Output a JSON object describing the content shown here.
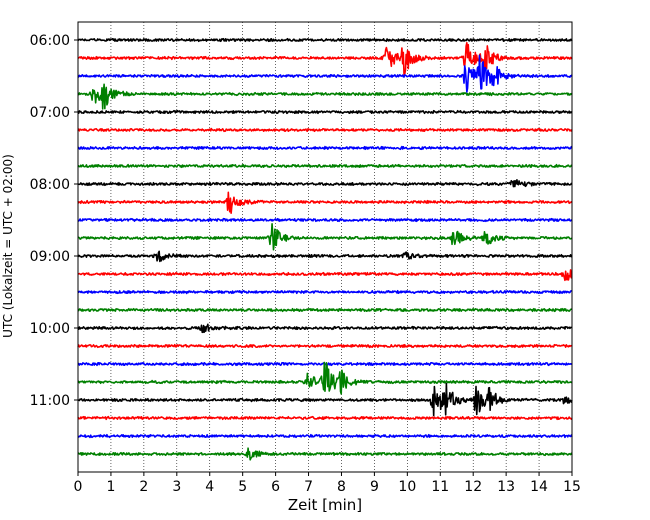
{
  "chart_data": {
    "type": "line",
    "title": "",
    "xlabel": "Zeit  [min]",
    "ylabel": "UTC (Lokalzeit = UTC + 02:00)",
    "xlim": [
      0,
      15
    ],
    "x_ticks": [
      "0",
      "1",
      "2",
      "3",
      "4",
      "5",
      "6",
      "7",
      "8",
      "9",
      "10",
      "11",
      "12",
      "13",
      "14",
      "15"
    ],
    "y_tick_labels": [
      "06:00",
      "07:00",
      "08:00",
      "09:00",
      "10:00",
      "11:00"
    ],
    "grid": "vertical dotted at each minute",
    "trace_interval_minutes": 15,
    "colors": [
      "#000000",
      "#ff0000",
      "#0000ff",
      "#008000"
    ],
    "traces": [
      {
        "start": "06:00",
        "color": "#000000",
        "events": []
      },
      {
        "start": "06:15",
        "color": "#ff0000",
        "events": [
          {
            "t": 9.4,
            "amp": 0.8
          },
          {
            "t": 9.9,
            "amp": 1.0
          },
          {
            "t": 11.8,
            "amp": 1.1
          },
          {
            "t": 12.4,
            "amp": 0.7
          }
        ]
      },
      {
        "start": "06:30",
        "color": "#0000ff",
        "events": [
          {
            "t": 11.8,
            "amp": 1.0
          },
          {
            "t": 12.2,
            "amp": 1.2
          },
          {
            "t": 12.6,
            "amp": 0.7
          }
        ]
      },
      {
        "start": "06:45",
        "color": "#008000",
        "events": [
          {
            "t": 0.5,
            "amp": 0.7
          },
          {
            "t": 0.8,
            "amp": 1.0
          }
        ]
      },
      {
        "start": "07:00",
        "color": "#000000",
        "events": []
      },
      {
        "start": "07:15",
        "color": "#ff0000",
        "events": []
      },
      {
        "start": "07:30",
        "color": "#0000ff",
        "events": []
      },
      {
        "start": "07:45",
        "color": "#008000",
        "events": []
      },
      {
        "start": "08:00",
        "color": "#000000",
        "events": [
          {
            "t": 13.2,
            "amp": 0.4
          }
        ]
      },
      {
        "start": "08:15",
        "color": "#ff0000",
        "events": [
          {
            "t": 4.6,
            "amp": 0.9
          }
        ]
      },
      {
        "start": "08:30",
        "color": "#0000ff",
        "events": []
      },
      {
        "start": "08:45",
        "color": "#008000",
        "events": [
          {
            "t": 5.9,
            "amp": 0.9
          },
          {
            "t": 11.4,
            "amp": 0.6
          },
          {
            "t": 12.4,
            "amp": 0.6
          }
        ]
      },
      {
        "start": "09:00",
        "color": "#000000",
        "events": [
          {
            "t": 2.4,
            "amp": 0.5
          },
          {
            "t": 9.9,
            "amp": 0.3
          }
        ]
      },
      {
        "start": "09:15",
        "color": "#ff0000",
        "events": [
          {
            "t": 14.8,
            "amp": 0.5
          }
        ]
      },
      {
        "start": "09:30",
        "color": "#0000ff",
        "events": []
      },
      {
        "start": "09:45",
        "color": "#008000",
        "events": []
      },
      {
        "start": "10:00",
        "color": "#000000",
        "events": [
          {
            "t": 3.8,
            "amp": 0.3
          }
        ]
      },
      {
        "start": "10:15",
        "color": "#ff0000",
        "events": []
      },
      {
        "start": "10:30",
        "color": "#0000ff",
        "events": []
      },
      {
        "start": "10:45",
        "color": "#008000",
        "events": [
          {
            "t": 7.0,
            "amp": 0.6
          },
          {
            "t": 7.5,
            "amp": 1.3
          },
          {
            "t": 8.0,
            "amp": 0.6
          }
        ]
      },
      {
        "start": "11:00",
        "color": "#000000",
        "events": [
          {
            "t": 10.8,
            "amp": 0.9
          },
          {
            "t": 11.1,
            "amp": 1.2
          },
          {
            "t": 12.1,
            "amp": 1.0
          },
          {
            "t": 12.5,
            "amp": 0.6
          },
          {
            "t": 14.8,
            "amp": 0.3
          }
        ]
      },
      {
        "start": "11:15",
        "color": "#ff0000",
        "events": []
      },
      {
        "start": "11:30",
        "color": "#0000ff",
        "events": []
      },
      {
        "start": "11:45",
        "color": "#008000",
        "events": [
          {
            "t": 5.2,
            "amp": 0.4
          }
        ]
      }
    ]
  }
}
